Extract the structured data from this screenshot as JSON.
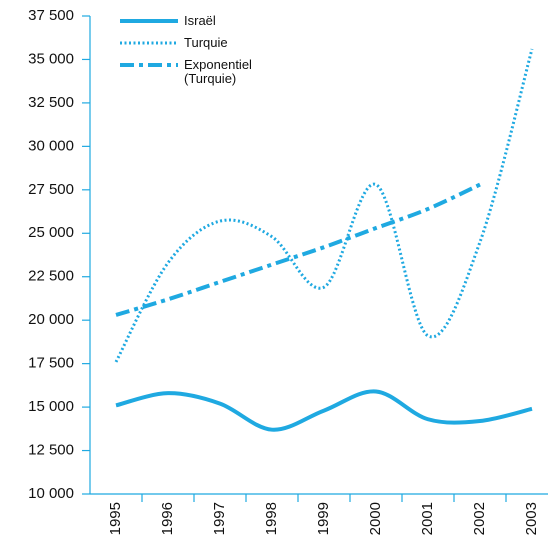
{
  "chart_data": {
    "type": "line",
    "categories": [
      "1995",
      "1996",
      "1997",
      "1998",
      "1999",
      "2000",
      "2001",
      "2002",
      "2003"
    ],
    "series": [
      {
        "name": "Israël",
        "color": "#1fa9e1",
        "style": "solid",
        "values": [
          15100,
          15800,
          15200,
          13700,
          14800,
          15900,
          14300,
          14200,
          14900
        ]
      },
      {
        "name": "Turquie",
        "color": "#1fa9e1",
        "style": "dotted",
        "values": [
          17600,
          23300,
          25700,
          24800,
          21900,
          27800,
          19100,
          24500,
          35600
        ]
      },
      {
        "name": "Exponentiel (Turquie)",
        "color": "#1fa9e1",
        "style": "dashdot",
        "values": [
          20300,
          21200,
          22200,
          23200,
          24200,
          25300,
          26400,
          27800,
          null
        ]
      }
    ],
    "ylim": [
      10000,
      37500
    ],
    "yticks": [
      {
        "value": 10000,
        "label": "10 000"
      },
      {
        "value": 12500,
        "label": "12 500"
      },
      {
        "value": 15000,
        "label": "15 000"
      },
      {
        "value": 17500,
        "label": "17 500"
      },
      {
        "value": 20000,
        "label": "20 000"
      },
      {
        "value": 22500,
        "label": "22 500"
      },
      {
        "value": 25000,
        "label": "25 000"
      },
      {
        "value": 27500,
        "label": "27 500"
      },
      {
        "value": 30000,
        "label": "30 000"
      },
      {
        "value": 32500,
        "label": "32 500"
      },
      {
        "value": 35000,
        "label": "35 000"
      },
      {
        "value": 37500,
        "label": "37 500"
      }
    ],
    "grid": false,
    "legend": "top-left"
  }
}
